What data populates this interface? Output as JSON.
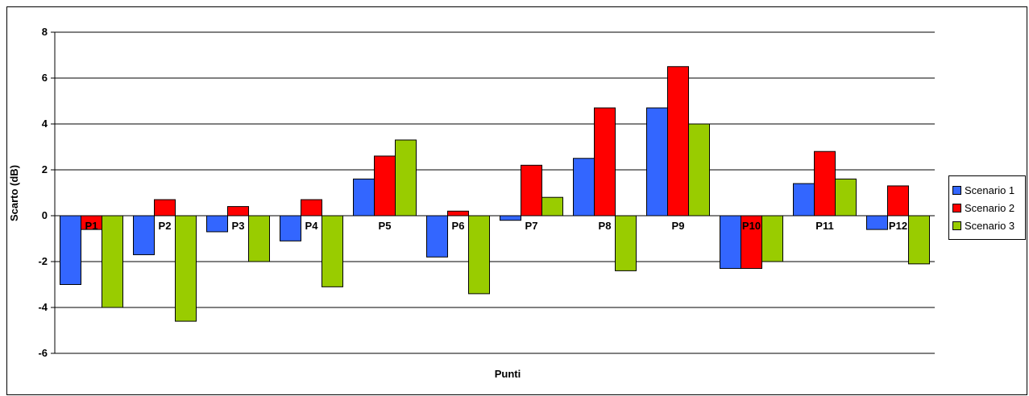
{
  "chart_data": {
    "type": "bar",
    "title": "",
    "xlabel": "Punti",
    "ylabel": "Scarto (dB)",
    "ylim": [
      -6,
      8
    ],
    "yticks": [
      -6,
      -4,
      -2,
      0,
      2,
      4,
      6,
      8
    ],
    "grid": true,
    "legend_position": "right",
    "categories": [
      "P1",
      "P2",
      "P3",
      "P4",
      "P5",
      "P6",
      "P7",
      "P8",
      "P9",
      "P10",
      "P11",
      "P12"
    ],
    "series": [
      {
        "name": "Scenario 1",
        "color": "#3366ff",
        "values": [
          -3.0,
          -1.7,
          -0.7,
          -1.1,
          1.6,
          -1.8,
          -0.2,
          2.5,
          4.7,
          -2.3,
          1.4,
          -0.6
        ]
      },
      {
        "name": "Scenario 2",
        "color": "#ff0000",
        "values": [
          -0.6,
          0.7,
          0.4,
          0.7,
          2.6,
          0.2,
          2.2,
          4.7,
          6.5,
          -2.3,
          2.8,
          1.3
        ]
      },
      {
        "name": "Scenario 3",
        "color": "#99cc00",
        "values": [
          -4.0,
          -4.6,
          -2.0,
          -3.1,
          3.3,
          -3.4,
          0.8,
          -2.4,
          4.0,
          -2.0,
          1.6,
          -2.1
        ]
      }
    ]
  }
}
